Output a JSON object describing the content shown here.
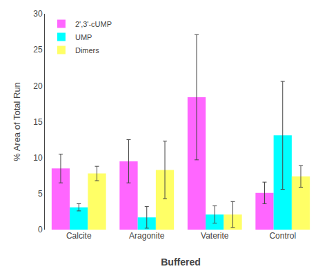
{
  "chart_data": {
    "type": "bar",
    "xlabel": "Buffered",
    "ylabel": "% Area of Total Run",
    "categories": [
      "Calcite",
      "Aragonite",
      "Vaterite",
      "Control"
    ],
    "series": [
      {
        "name": "2',3'-cUMP",
        "color": "#FF66FF",
        "values": [
          8.5,
          9.5,
          18.4,
          5.1
        ],
        "errors": [
          2.0,
          3.0,
          8.7,
          1.5
        ]
      },
      {
        "name": "UMP",
        "color": "#00FFFF",
        "values": [
          3.1,
          1.7,
          2.1,
          13.1
        ],
        "errors": [
          0.5,
          1.5,
          1.2,
          7.5
        ]
      },
      {
        "name": "Dimers",
        "color": "#FFFF66",
        "values": [
          7.8,
          8.3,
          2.1,
          7.4
        ],
        "errors": [
          1.0,
          4.0,
          1.8,
          1.5
        ]
      }
    ],
    "ylim": [
      0,
      30
    ],
    "yticks": [
      0,
      5,
      10,
      15,
      20,
      25,
      30
    ],
    "legend": "upper left",
    "grid": false
  }
}
